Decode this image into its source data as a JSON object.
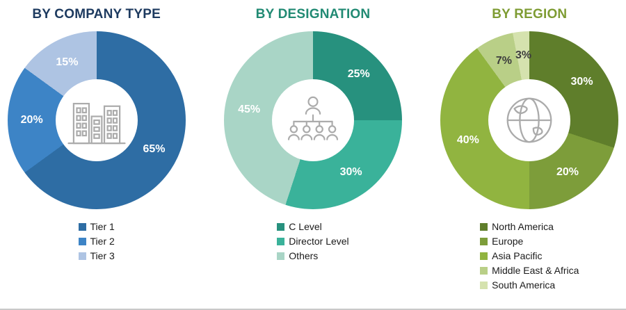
{
  "page": {
    "background": "#ffffff",
    "bottom_divider_color": "#c9c9c9"
  },
  "chart_data": [
    {
      "type": "pie",
      "subtype": "donut",
      "title": "BY COMPANY TYPE",
      "title_color": "#1d3a5f",
      "center_icon": "buildings-icon",
      "legend_position": "bottom",
      "start_angle_deg": 0,
      "direction": "clockwise",
      "segments": [
        {
          "name": "Tier 1",
          "value": 65,
          "label": "65%",
          "color": "#2e6da4",
          "label_color": "#ffffff"
        },
        {
          "name": "Tier 2",
          "value": 20,
          "label": "20%",
          "color": "#3d84c6",
          "label_color": "#ffffff"
        },
        {
          "name": "Tier 3",
          "value": 15,
          "label": "15%",
          "color": "#aec4e3",
          "label_color": "#ffffff"
        }
      ]
    },
    {
      "type": "pie",
      "subtype": "donut",
      "title": "BY DESIGNATION",
      "title_color": "#218a73",
      "center_icon": "org-chart-icon",
      "legend_position": "bottom",
      "start_angle_deg": 0,
      "direction": "clockwise",
      "segments": [
        {
          "name": "C Level",
          "value": 25,
          "label": "25%",
          "color": "#27917e",
          "label_color": "#ffffff"
        },
        {
          "name": "Director Level",
          "value": 30,
          "label": "30%",
          "color": "#3ab29a",
          "label_color": "#ffffff"
        },
        {
          "name": "Others",
          "value": 45,
          "label": "45%",
          "color": "#a9d5c6",
          "label_color": "#ffffff"
        }
      ]
    },
    {
      "type": "pie",
      "subtype": "donut",
      "title": "BY REGION",
      "title_color": "#7e9c33",
      "center_icon": "globe-icon",
      "legend_position": "bottom",
      "start_angle_deg": 0,
      "direction": "clockwise",
      "segments": [
        {
          "name": "North America",
          "value": 30,
          "label": "30%",
          "color": "#5f7e2b",
          "label_color": "#ffffff"
        },
        {
          "name": "Europe",
          "value": 20,
          "label": "20%",
          "color": "#7d9d3a",
          "label_color": "#ffffff"
        },
        {
          "name": "Asia Pacific",
          "value": 40,
          "label": "40%",
          "color": "#91b440",
          "label_color": "#ffffff"
        },
        {
          "name": "Middle East & Africa",
          "value": 7,
          "label": "7%",
          "color": "#b9cf87",
          "label_color": "#3d3d3d"
        },
        {
          "name": "South America",
          "value": 3,
          "label": "3%",
          "color": "#d5e2ae",
          "label_color": "#3d3d3d"
        }
      ]
    }
  ]
}
